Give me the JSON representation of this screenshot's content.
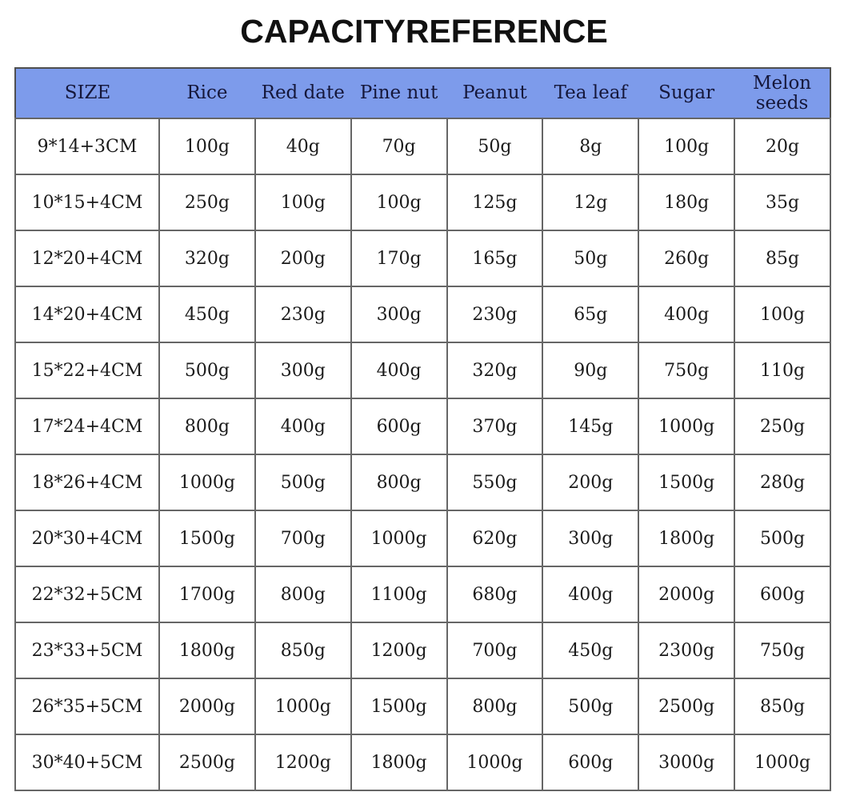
{
  "title": "CAPACITYREFERENCE",
  "colors": {
    "header_bg": "#7D9BEB",
    "header_text": "#15173a",
    "body_text": "#1a1a1a",
    "grid_border": "#666666"
  },
  "chart_data": {
    "type": "table",
    "title": "CAPACITYREFERENCE",
    "columns": [
      "SIZE",
      "Rice",
      "Red date",
      "Pine nut",
      "Peanut",
      "Tea leaf",
      "Sugar",
      "Melon seeds"
    ],
    "unit": "g",
    "rows": [
      [
        "9*14+3CM",
        "100g",
        "40g",
        "70g",
        "50g",
        "8g",
        "100g",
        "20g"
      ],
      [
        "10*15+4CM",
        "250g",
        "100g",
        "100g",
        "125g",
        "12g",
        "180g",
        "35g"
      ],
      [
        "12*20+4CM",
        "320g",
        "200g",
        "170g",
        "165g",
        "50g",
        "260g",
        "85g"
      ],
      [
        "14*20+4CM",
        "450g",
        "230g",
        "300g",
        "230g",
        "65g",
        "400g",
        "100g"
      ],
      [
        "15*22+4CM",
        "500g",
        "300g",
        "400g",
        "320g",
        "90g",
        "750g",
        "110g"
      ],
      [
        "17*24+4CM",
        "800g",
        "400g",
        "600g",
        "370g",
        "145g",
        "1000g",
        "250g"
      ],
      [
        "18*26+4CM",
        "1000g",
        "500g",
        "800g",
        "550g",
        "200g",
        "1500g",
        "280g"
      ],
      [
        "20*30+4CM",
        "1500g",
        "700g",
        "1000g",
        "620g",
        "300g",
        "1800g",
        "500g"
      ],
      [
        "22*32+5CM",
        "1700g",
        "800g",
        "1100g",
        "680g",
        "400g",
        "2000g",
        "600g"
      ],
      [
        "23*33+5CM",
        "1800g",
        "850g",
        "1200g",
        "700g",
        "450g",
        "2300g",
        "750g"
      ],
      [
        "26*35+5CM",
        "2000g",
        "1000g",
        "1500g",
        "800g",
        "500g",
        "2500g",
        "850g"
      ],
      [
        "30*40+5CM",
        "2500g",
        "1200g",
        "1800g",
        "1000g",
        "600g",
        "3000g",
        "1000g"
      ]
    ]
  }
}
